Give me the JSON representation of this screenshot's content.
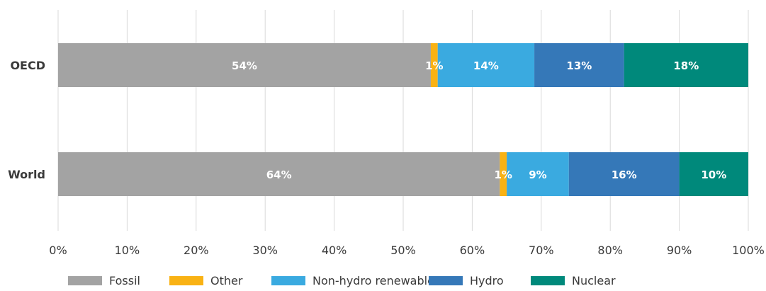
{
  "chart_data": {
    "type": "bar",
    "orientation": "horizontal",
    "stacked": true,
    "categories": [
      "OECD",
      "World"
    ],
    "series": [
      {
        "name": "Fossil",
        "values": [
          54,
          64
        ],
        "labels": [
          "54%",
          "64%"
        ],
        "color": "#a3a3a3"
      },
      {
        "name": "Other",
        "values": [
          1,
          1
        ],
        "labels": [
          "1%",
          "1%"
        ],
        "color": "#f9b214"
      },
      {
        "name": "Non-hydro renewables",
        "values": [
          14,
          9
        ],
        "labels": [
          "14%",
          "9%"
        ],
        "color": "#3aaae0"
      },
      {
        "name": "Hydro",
        "values": [
          13,
          16
        ],
        "labels": [
          "13%",
          "16%"
        ],
        "color": "#3578b8"
      },
      {
        "name": "Nuclear",
        "values": [
          18,
          10
        ],
        "labels": [
          "18%",
          "10%"
        ],
        "color": "#00897b"
      }
    ],
    "xlim": [
      0,
      100
    ],
    "xticks": [
      "0%",
      "10%",
      "20%",
      "30%",
      "40%",
      "50%",
      "60%",
      "70%",
      "80%",
      "90%",
      "100%"
    ],
    "grid": "vertical",
    "legend": "bottom"
  }
}
